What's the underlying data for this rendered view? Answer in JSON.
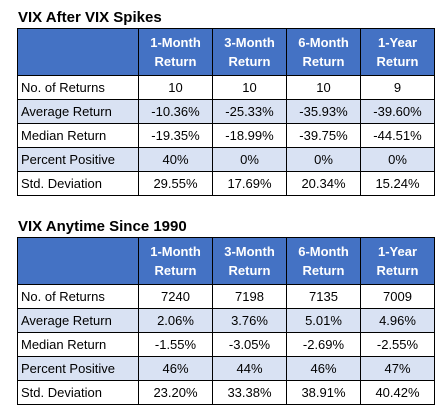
{
  "tables": [
    {
      "title": "VIX After VIX Spikes",
      "headers": [
        {
          "line1": "1-Month",
          "line2": "Return"
        },
        {
          "line1": "3-Month",
          "line2": "Return"
        },
        {
          "line1": "6-Month",
          "line2": "Return"
        },
        {
          "line1": "1-Year",
          "line2": "Return"
        }
      ],
      "rows": [
        {
          "label": "No. of Returns",
          "cells": [
            "10",
            "10",
            "10",
            "9"
          ]
        },
        {
          "label": "Average Return",
          "cells": [
            "-10.36%",
            "-25.33%",
            "-35.93%",
            "-39.60%"
          ]
        },
        {
          "label": "Median Return",
          "cells": [
            "-19.35%",
            "-18.99%",
            "-39.75%",
            "-44.51%"
          ]
        },
        {
          "label": "Percent Positive",
          "cells": [
            "40%",
            "0%",
            "0%",
            "0%"
          ]
        },
        {
          "label": "Std. Deviation",
          "cells": [
            "29.55%",
            "17.69%",
            "20.34%",
            "15.24%"
          ]
        }
      ]
    },
    {
      "title": "VIX Anytime Since 1990",
      "headers": [
        {
          "line1": "1-Month",
          "line2": "Return"
        },
        {
          "line1": "3-Month",
          "line2": "Return"
        },
        {
          "line1": "6-Month",
          "line2": "Return"
        },
        {
          "line1": "1-Year",
          "line2": "Return"
        }
      ],
      "rows": [
        {
          "label": "No. of Returns",
          "cells": [
            "7240",
            "7198",
            "7135",
            "7009"
          ]
        },
        {
          "label": "Average Return",
          "cells": [
            "2.06%",
            "3.76%",
            "5.01%",
            "4.96%"
          ]
        },
        {
          "label": "Median Return",
          "cells": [
            "-1.55%",
            "-3.05%",
            "-2.69%",
            "-2.55%"
          ]
        },
        {
          "label": "Percent Positive",
          "cells": [
            "46%",
            "44%",
            "46%",
            "47%"
          ]
        },
        {
          "label": "Std. Deviation",
          "cells": [
            "23.20%",
            "33.38%",
            "38.91%",
            "40.42%"
          ]
        }
      ]
    }
  ],
  "colors": {
    "header_bg": "#4472c4",
    "header_text": "#ffffff",
    "band_bg": "#d9e2f3"
  }
}
